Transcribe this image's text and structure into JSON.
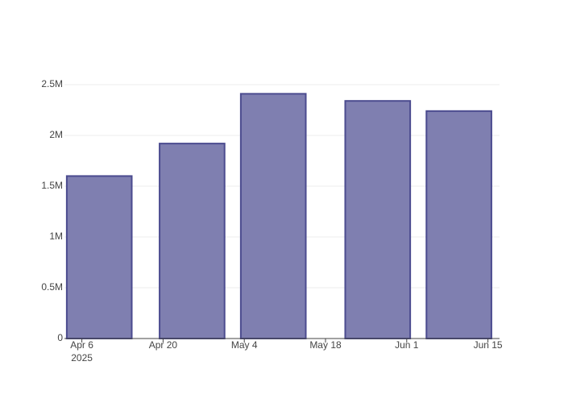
{
  "chart_data": {
    "type": "bar",
    "x": [
      "2025-04-09",
      "2025-04-25",
      "2025-05-09",
      "2025-05-27",
      "2025-06-10"
    ],
    "values": [
      1600000,
      1920000,
      2410000,
      2340000,
      2240000
    ],
    "color": "#7f7fb0",
    "line_color": "#4b4b8f",
    "xlim": [
      "2025-04-03",
      "2025-06-17"
    ],
    "xticks": [
      {
        "value": "2025-04-06",
        "label": "Apr 6"
      },
      {
        "value": "2025-04-20",
        "label": "Apr 20"
      },
      {
        "value": "2025-05-04",
        "label": "May 4"
      },
      {
        "value": "2025-05-18",
        "label": "May 18"
      },
      {
        "value": "2025-06-01",
        "label": "Jun 1"
      },
      {
        "value": "2025-06-15",
        "label": "Jun 15"
      }
    ],
    "x_year_label": "2025",
    "ylim": [
      0,
      2540000
    ],
    "yticks": [
      0,
      {
        "value": 500000,
        "label": "0.5M"
      },
      {
        "value": 1000000,
        "label": "1M"
      },
      {
        "value": 1500000,
        "label": "1.5M"
      },
      {
        "value": 2000000,
        "label": "2M"
      },
      {
        "value": 2500000,
        "label": "2.5M"
      }
    ],
    "grid": true
  }
}
